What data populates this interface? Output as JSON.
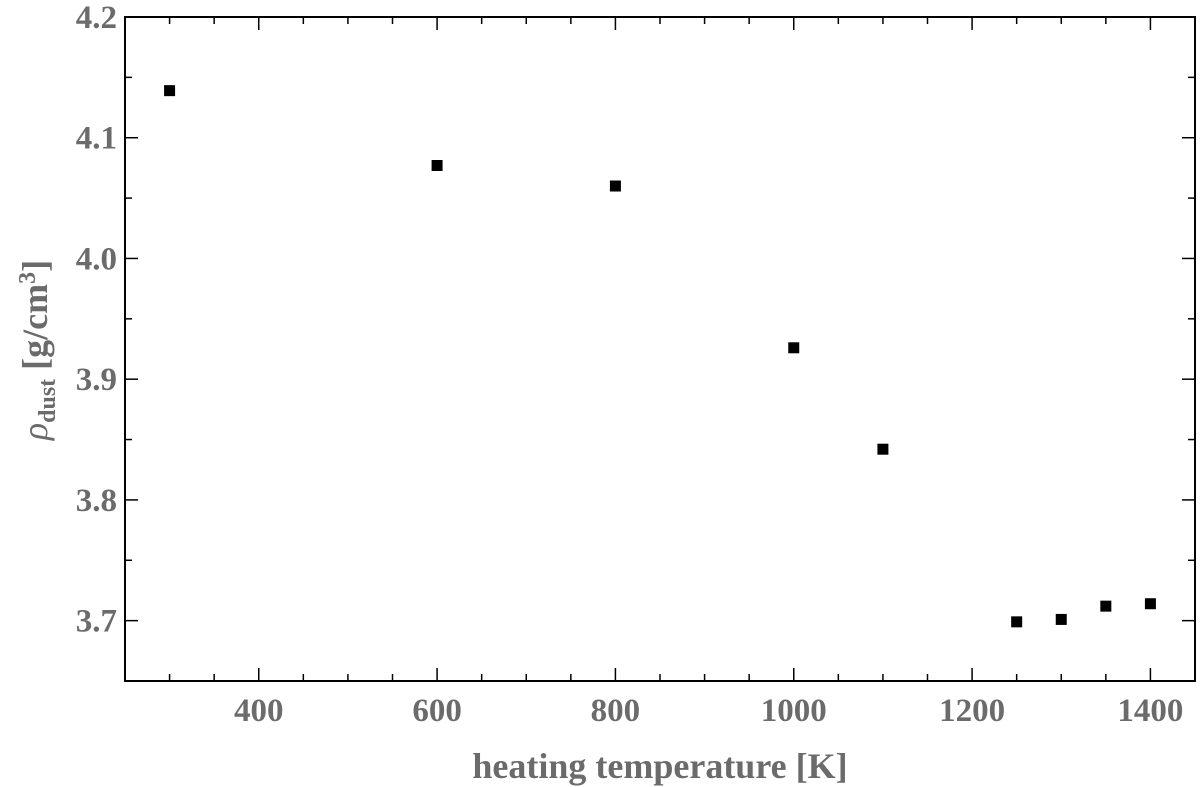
{
  "chart_data": {
    "type": "scatter",
    "title": "",
    "xlabel": "heating temperature [K]",
    "ylabel": {
      "symbol": "ρ",
      "subscript": "dust",
      "unit_pre": " [g/cm",
      "unit_sup": "3",
      "unit_post": "]"
    },
    "xlim": [
      250,
      1450
    ],
    "ylim": [
      3.65,
      4.2
    ],
    "xticks": [
      400,
      600,
      800,
      1000,
      1200,
      1400
    ],
    "xtick_labels": [
      "400",
      "600",
      "800",
      "1000",
      "1200",
      "1400"
    ],
    "yticks": [
      3.7,
      3.8,
      3.9,
      4.0,
      4.1,
      4.2
    ],
    "ytick_labels": [
      "3.7",
      "3.8",
      "3.9",
      "4.0",
      "4.1",
      "4.2"
    ],
    "grid": false,
    "marker": "square",
    "marker_color": "#000000",
    "series": [
      {
        "x": [
          300,
          600,
          800,
          1000,
          1100,
          1250,
          1300,
          1350,
          1400
        ],
        "y": [
          4.139,
          4.077,
          4.06,
          3.926,
          3.842,
          3.699,
          3.701,
          3.712,
          3.714
        ]
      }
    ]
  }
}
